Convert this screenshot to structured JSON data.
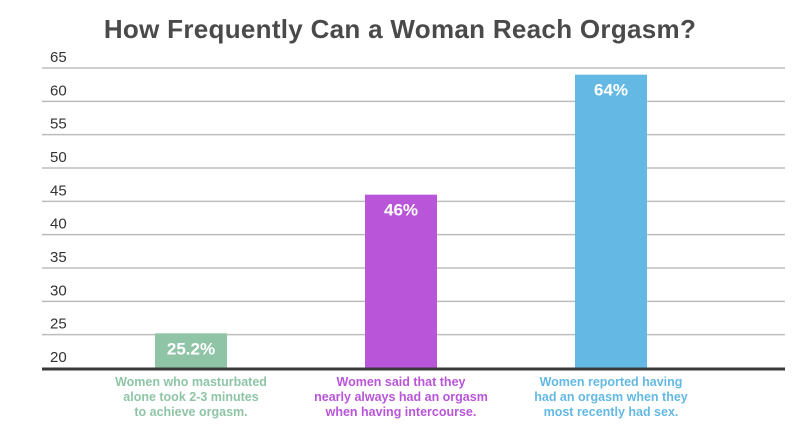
{
  "chart_data": {
    "type": "bar",
    "title": "How Frequently Can a Woman Reach Orgasm?",
    "xlabel": "",
    "ylabel": "",
    "ylim": [
      20,
      65
    ],
    "yticks": [
      20,
      25,
      30,
      35,
      40,
      45,
      50,
      55,
      60,
      65
    ],
    "grid": true,
    "categories": [
      "Women who masturbated alone took 2-3 minutes to achieve orgasm.",
      "Women said that they nearly always had an orgasm when having intercourse.",
      "Women reported having had an orgasm when they most recently had sex."
    ],
    "category_lines": [
      [
        "Women who masturbated",
        "alone took 2-3 minutes",
        "to achieve orgasm."
      ],
      [
        "Women said that they",
        "nearly always had an orgasm",
        "when having intercourse."
      ],
      [
        "Women reported having",
        "had an orgasm when they",
        "most recently had sex."
      ]
    ],
    "values": [
      25.2,
      46,
      64
    ],
    "data_labels": [
      "25.2%",
      "46%",
      "64%"
    ],
    "colors": [
      "#8fc5a6",
      "#b955d9",
      "#64b9e4"
    ]
  },
  "colors": {
    "title": "#4a4a4a",
    "grid": "#bdbdbd",
    "axis": "#3a3a3a",
    "tick": "#333333"
  }
}
